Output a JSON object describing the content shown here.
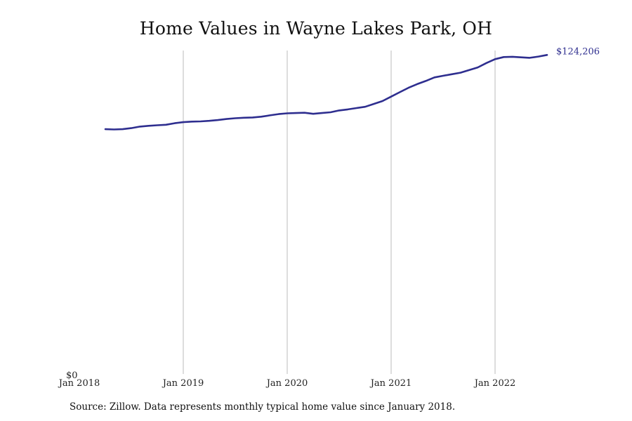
{
  "chart_data": {
    "type": "line",
    "title": "Home Values in Wayne Lakes Park, OH",
    "xlabel": "",
    "ylabel": "",
    "x_ticks": [
      "Jan 2018",
      "Jan 2019",
      "Jan 2020",
      "Jan 2021",
      "Jan 2022"
    ],
    "y_tick_label": "$0",
    "ylim": [
      0,
      124206
    ],
    "grid": "vertical",
    "colors": {
      "line": "#2e2e8f",
      "grid": "#bbbbbb"
    },
    "end_label": "$124,206",
    "series": [
      {
        "x": [
          "2018-04",
          "2018-05",
          "2018-06",
          "2018-07",
          "2018-08",
          "2018-09",
          "2018-10",
          "2018-11",
          "2018-12",
          "2019-01",
          "2019-02",
          "2019-03",
          "2019-04",
          "2019-05",
          "2019-06",
          "2019-07",
          "2019-08",
          "2019-09",
          "2019-10",
          "2019-11",
          "2019-12",
          "2020-01",
          "2020-02",
          "2020-03",
          "2020-04",
          "2020-05",
          "2020-06",
          "2020-07",
          "2020-08",
          "2020-09",
          "2020-10",
          "2020-11",
          "2020-12",
          "2021-01",
          "2021-02",
          "2021-03",
          "2021-04",
          "2021-05",
          "2021-06",
          "2021-07",
          "2021-08",
          "2021-09",
          "2021-10",
          "2021-11",
          "2021-12",
          "2022-01",
          "2022-02",
          "2022-03",
          "2022-04",
          "2022-05",
          "2022-06",
          "2022-07"
        ],
        "values": [
          94000,
          93900,
          94000,
          94400,
          95000,
          95300,
          95500,
          95700,
          96300,
          96700,
          96900,
          97000,
          97200,
          97500,
          97900,
          98200,
          98400,
          98500,
          98800,
          99300,
          99800,
          100100,
          100200,
          100300,
          99900,
          100200,
          100500,
          101200,
          101600,
          102100,
          102600,
          103700,
          104800,
          106500,
          108200,
          109900,
          111300,
          112500,
          113900,
          114500,
          115100,
          115700,
          116700,
          117700,
          119400,
          120900,
          121700,
          121800,
          121600,
          121400,
          121900,
          122500
        ]
      }
    ]
  },
  "source_note": "Source: Zillow. Data represents monthly typical home value since January 2018."
}
